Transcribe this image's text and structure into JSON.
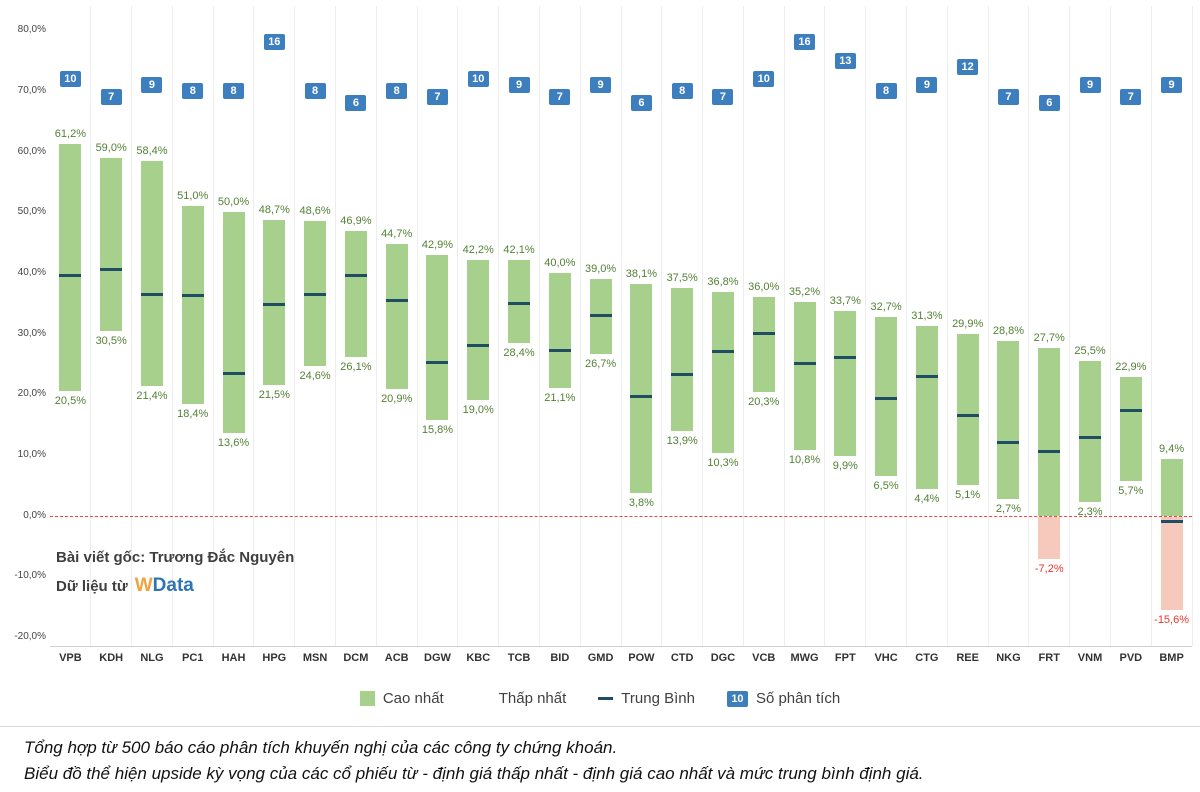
{
  "chart_data": {
    "type": "bar",
    "subtype": "floating-range-bar",
    "title": "",
    "xlabel": "",
    "ylabel": "",
    "ylim": [
      -20,
      80
    ],
    "y_ticks": [
      80,
      70,
      60,
      50,
      40,
      30,
      20,
      10,
      0,
      -10,
      -20
    ],
    "grid": "vertical-column-separators",
    "legend_position": "bottom",
    "categories": [
      "VPB",
      "KDH",
      "NLG",
      "PC1",
      "HAH",
      "HPG",
      "MSN",
      "DCM",
      "ACB",
      "DGW",
      "KBC",
      "TCB",
      "BID",
      "GMD",
      "POW",
      "CTD",
      "DGC",
      "VCB",
      "MWG",
      "FPT",
      "VHC",
      "CTG",
      "REE",
      "NKG",
      "FRT",
      "VNM",
      "PVD",
      "BMP"
    ],
    "series": [
      {
        "name": "Cao nhất",
        "values": [
          61.2,
          59.0,
          58.4,
          51.0,
          50.0,
          48.7,
          48.6,
          46.9,
          44.7,
          42.9,
          42.2,
          42.1,
          40.0,
          39.0,
          38.1,
          37.5,
          36.8,
          36.0,
          35.2,
          33.7,
          32.7,
          31.3,
          29.9,
          28.8,
          27.7,
          25.5,
          22.9,
          9.4
        ]
      },
      {
        "name": "Thấp nhất",
        "values": [
          20.5,
          30.5,
          21.4,
          18.4,
          13.6,
          21.5,
          24.6,
          26.1,
          20.9,
          15.8,
          19.0,
          28.4,
          21.1,
          26.7,
          3.8,
          13.9,
          10.3,
          20.3,
          10.8,
          9.9,
          6.5,
          4.4,
          5.1,
          2.7,
          -7.2,
          2.3,
          5.7,
          -15.6
        ]
      },
      {
        "name": "Trung Bình",
        "values": [
          39.5,
          40.5,
          36.5,
          36.2,
          23.5,
          34.8,
          36.5,
          39.5,
          35.5,
          25.2,
          28.0,
          34.9,
          27.2,
          33.0,
          19.6,
          23.3,
          27.1,
          30.0,
          25.0,
          26.1,
          19.3,
          22.9,
          16.5,
          12.1,
          10.5,
          12.9,
          17.4,
          -1.0
        ]
      },
      {
        "name": "Số phân tích",
        "values": [
          10,
          7,
          9,
          8,
          8,
          16,
          8,
          6,
          8,
          7,
          10,
          9,
          7,
          9,
          6,
          8,
          7,
          10,
          16,
          13,
          8,
          9,
          12,
          7,
          6,
          9,
          7,
          9
        ]
      }
    ],
    "legend": {
      "high": "Cao nhất",
      "low": "Thấp nhất",
      "avg": "Trung Bình",
      "count": "Số phân tích",
      "count_sample": "10"
    },
    "colors": {
      "bar_positive": "#a8d08d",
      "bar_negative": "#f6c9bd",
      "avg_marker": "#1f4e63",
      "count_badge": "#3d7ebf",
      "label_positive": "#538135",
      "label_negative": "#e8372d",
      "zero_line": "#f0433d"
    }
  },
  "annotation": {
    "credit": "Bài viết gốc: Trương Đắc Nguyên",
    "source_prefix": "Dữ liệu từ",
    "logo": {
      "w": "W",
      "data": "Data"
    }
  },
  "footer": {
    "line1": "Tổng hợp từ 500 báo cáo phân tích khuyến nghị của các công ty chứng khoán.",
    "line2": "Biểu đồ thể hiện upside kỳ vọng của các cổ phiếu từ - định giá thấp nhất - định giá cao nhất và mức trung bình định giá."
  }
}
